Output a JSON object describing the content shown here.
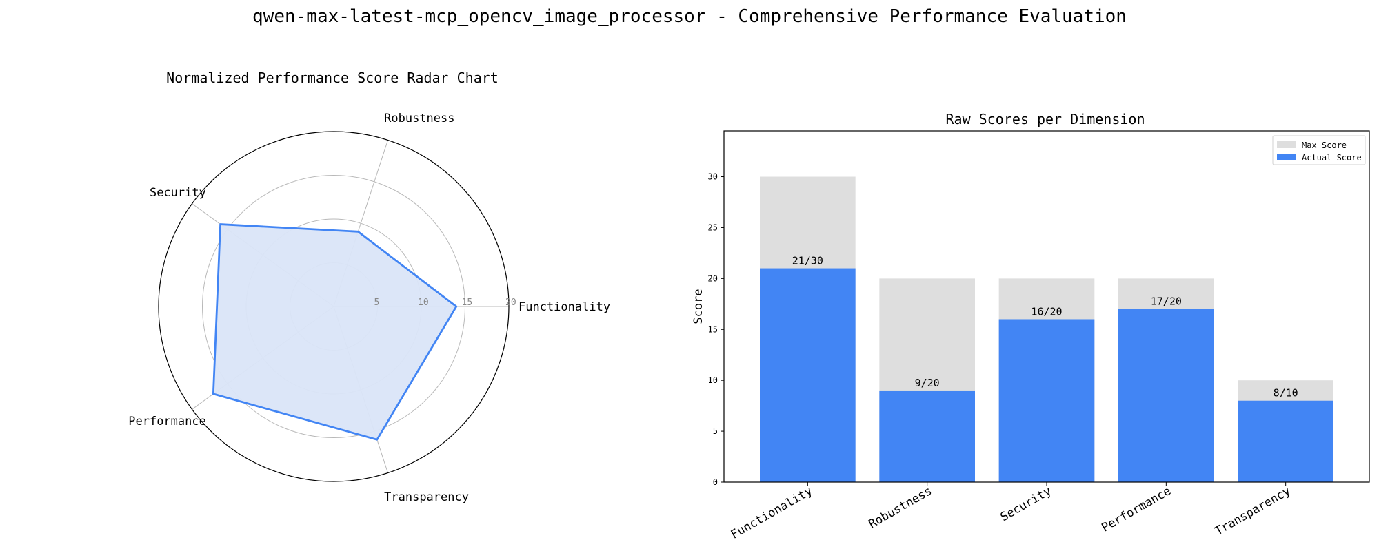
{
  "title": "qwen-max-latest-mcp_opencv_image_processor - Comprehensive Performance Evaluation",
  "colors": {
    "actual": "#4285f4",
    "max": "#dedede",
    "radar_fill": "#dae5f8",
    "radar_line": "#4285f4",
    "grid": "#b8b8b8"
  },
  "chart_data": [
    {
      "type": "radar",
      "title": "Normalized Performance Score Radar Chart",
      "categories": [
        "Functionality",
        "Robustness",
        "Security",
        "Performance",
        "Transparency"
      ],
      "values": [
        14,
        9,
        16,
        17,
        16
      ],
      "rlim": [
        0,
        20
      ],
      "rticks": [
        5,
        10,
        15,
        20
      ],
      "grid": true
    },
    {
      "type": "bar",
      "title": "Raw Scores per Dimension",
      "ylabel": "Score",
      "categories": [
        "Functionality",
        "Robustness",
        "Security",
        "Performance",
        "Transparency"
      ],
      "series": [
        {
          "name": "Max Score",
          "values": [
            30,
            20,
            20,
            20,
            10
          ]
        },
        {
          "name": "Actual Score",
          "values": [
            21,
            9,
            16,
            17,
            8
          ]
        }
      ],
      "bar_labels": [
        "21/30",
        "9/20",
        "16/20",
        "17/20",
        "8/10"
      ],
      "ylim": [
        0,
        34.5
      ],
      "yticks": [
        0,
        5,
        10,
        15,
        20,
        25,
        30
      ],
      "legend": "top-right"
    }
  ]
}
